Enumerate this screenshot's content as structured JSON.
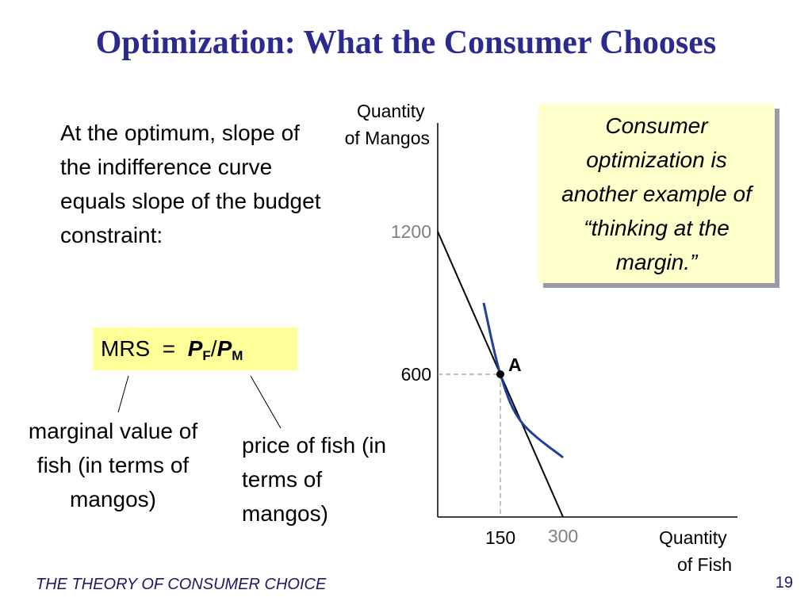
{
  "slide": {
    "title": "Optimization: What the Consumer Chooses",
    "left_text": "At the optimum, slope of the indifference curve equals slope of the budget constraint:",
    "formula": {
      "lhs": "MRS  =  ",
      "num": "P",
      "num_sub": "F",
      "slash": "/",
      "den": "P",
      "den_sub": "M"
    },
    "label_marginal": "marginal value of fish (in terms of mangos)",
    "label_price": "price of fish (in terms of mangos)",
    "callout": "Consumer optimization is another example of “thinking at the margin.”",
    "footer": "THE THEORY OF CONSUMER CHOICE",
    "page_number": "19"
  },
  "colors": {
    "title": "#2b2b8f",
    "highlight": "#ffff99",
    "callout_bg": "#ffffcc",
    "indifference_curve": "#1f3f99",
    "grey_label": "#808080"
  },
  "chart_data": {
    "type": "line",
    "xlabel_lines": [
      "Quantity",
      "of Fish"
    ],
    "ylabel_lines": [
      "Quantity",
      "of Mangos"
    ],
    "x_ticks": [
      150,
      300
    ],
    "y_ticks": [
      600,
      1200
    ],
    "xlim": [
      0,
      420
    ],
    "ylim": [
      0,
      1700
    ],
    "series": [
      {
        "type": "budget_line",
        "points": [
          [
            0,
            1200
          ],
          [
            300,
            0
          ]
        ]
      },
      {
        "type": "indifference_curve",
        "points": [
          [
            110,
            900
          ],
          [
            150,
            600
          ],
          [
            200,
            400
          ],
          [
            300,
            250
          ]
        ]
      }
    ],
    "optimum": {
      "label": "A",
      "x": 150,
      "y": 600
    },
    "grid": false
  }
}
